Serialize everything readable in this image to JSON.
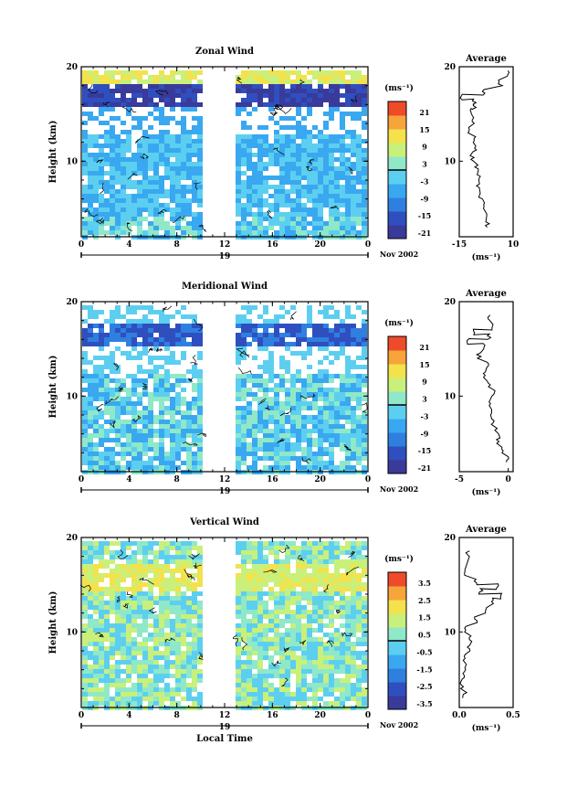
{
  "panels": [
    {
      "title": "Zonal Wind",
      "date_label": "Nov 2002",
      "ylabel": "Height (km)",
      "xlabel": "",
      "colorbar": {
        "unit": "(ms⁻¹)",
        "ticks": [
          "21",
          "15",
          "9",
          "3",
          "-3",
          "-9",
          "-15",
          "-21"
        ]
      },
      "average": {
        "title": "Average",
        "xlabel": "(ms⁻¹)",
        "xticks": [
          "-15",
          "10"
        ],
        "xlim": [
          -15,
          10
        ]
      }
    },
    {
      "title": "Meridional Wind",
      "date_label": "Nov 2002",
      "ylabel": "Height (km)",
      "xlabel": "",
      "colorbar": {
        "unit": "(ms⁻¹)",
        "ticks": [
          "21",
          "15",
          "9",
          "3",
          "-3",
          "-9",
          "-15",
          "-21"
        ]
      },
      "average": {
        "title": "Average",
        "xlabel": "(ms⁻¹)",
        "xticks": [
          "-5",
          "0"
        ],
        "xlim": [
          -5,
          0.5
        ]
      }
    },
    {
      "title": "Vertical Wind",
      "date_label": "Nov 2002",
      "ylabel": "Height (km)",
      "xlabel": "Local Time",
      "colorbar": {
        "unit": "(ms⁻¹)",
        "ticks": [
          "3.5",
          "2.5",
          "1.5",
          "0.5",
          "-0.5",
          "-1.5",
          "-2.5",
          "-3.5"
        ]
      },
      "average": {
        "title": "Average",
        "xlabel": "(ms⁻¹)",
        "xticks": [
          "0.0",
          "0.5"
        ],
        "xlim": [
          0,
          0.5
        ]
      }
    }
  ],
  "chart_data": [
    {
      "type": "heatmap",
      "title": "Zonal Wind",
      "xlabel": "",
      "ylabel": "Height (km)",
      "xticks": [
        "0",
        "4",
        "8",
        "12",
        "16",
        "20",
        "0"
      ],
      "yticks": [
        "10",
        "20"
      ],
      "day_label": "19",
      "xlim": [
        0,
        24
      ],
      "ylim": [
        2,
        20
      ],
      "data_gap": [
        10.5,
        13.2
      ],
      "colorbar_unit": "(ms⁻¹)",
      "colorbar_range": [
        -21,
        21
      ],
      "colors": [
        "#3a3a9a",
        "#2f4fbf",
        "#2f7fe0",
        "#39a8f0",
        "#5ccff0",
        "#8fe8c8",
        "#c9f07a",
        "#f3e24b",
        "#f7a43a",
        "#ef4b2b"
      ],
      "profile": {
        "x": [
          -2,
          -3,
          -4,
          -5,
          -6,
          -6,
          -7,
          -9,
          -8,
          -8,
          -10,
          -9,
          -9,
          -8,
          -8,
          -14,
          -4,
          4,
          8
        ],
        "y": [
          3,
          4,
          5,
          6,
          7,
          8,
          9,
          10,
          11,
          12,
          13,
          14,
          15,
          15.5,
          16,
          16.5,
          17,
          18,
          19
        ]
      }
    },
    {
      "type": "heatmap",
      "title": "Meridional Wind",
      "xlabel": "",
      "ylabel": "Height (km)",
      "xticks": [
        "0",
        "4",
        "8",
        "12",
        "16",
        "20",
        "0"
      ],
      "yticks": [
        "10",
        "20"
      ],
      "day_label": "19",
      "xlim": [
        0,
        24
      ],
      "ylim": [
        2,
        20
      ],
      "data_gap": [
        10.5,
        13.2
      ],
      "colorbar_unit": "(ms⁻¹)",
      "colorbar_range": [
        -21,
        21
      ],
      "colors": [
        "#3a3a9a",
        "#2f4fbf",
        "#2f7fe0",
        "#39a8f0",
        "#5ccff0",
        "#8fe8c8",
        "#c9f07a",
        "#f3e24b",
        "#f7a43a",
        "#ef4b2b"
      ],
      "profile": {
        "x": [
          0,
          -0.5,
          -1,
          -1.2,
          -1.5,
          -1.8,
          -2,
          -1.5,
          -2,
          -2.5,
          -2,
          -3,
          -2.5,
          -4,
          -2,
          -3.5,
          -1.5,
          -2
        ],
        "y": [
          3,
          4,
          5,
          6,
          7,
          8,
          9,
          10,
          11,
          12,
          13,
          14,
          15,
          15.5,
          16,
          16.5,
          17,
          18
        ]
      }
    },
    {
      "type": "heatmap",
      "title": "Vertical Wind",
      "xlabel": "Local Time",
      "ylabel": "Height (km)",
      "xticks": [
        "0",
        "4",
        "8",
        "12",
        "16",
        "20",
        "0"
      ],
      "yticks": [
        "10",
        "20"
      ],
      "day_label": "19",
      "xlim": [
        0,
        24
      ],
      "ylim": [
        2,
        20
      ],
      "data_gap": [
        10.5,
        13.2
      ],
      "colorbar_unit": "(ms⁻¹)",
      "colorbar_range": [
        -3.5,
        3.5
      ],
      "colors": [
        "#3a3a9a",
        "#2f4fbf",
        "#2f7fe0",
        "#39a8f0",
        "#5ccff0",
        "#8fe8c8",
        "#c9f07a",
        "#f3e24b",
        "#f7a43a",
        "#ef4b2b"
      ],
      "profile": {
        "x": [
          0.05,
          0.02,
          0.04,
          0.06,
          0.05,
          0.08,
          0.1,
          0.05,
          0.15,
          0.25,
          0.3,
          0.4,
          0.2,
          0.35,
          0.15,
          0.05,
          0.08
        ],
        "y": [
          3,
          4,
          5,
          6,
          7,
          8,
          9,
          10,
          11,
          12,
          13,
          13.5,
          14,
          14.5,
          15,
          16,
          18
        ]
      }
    }
  ]
}
